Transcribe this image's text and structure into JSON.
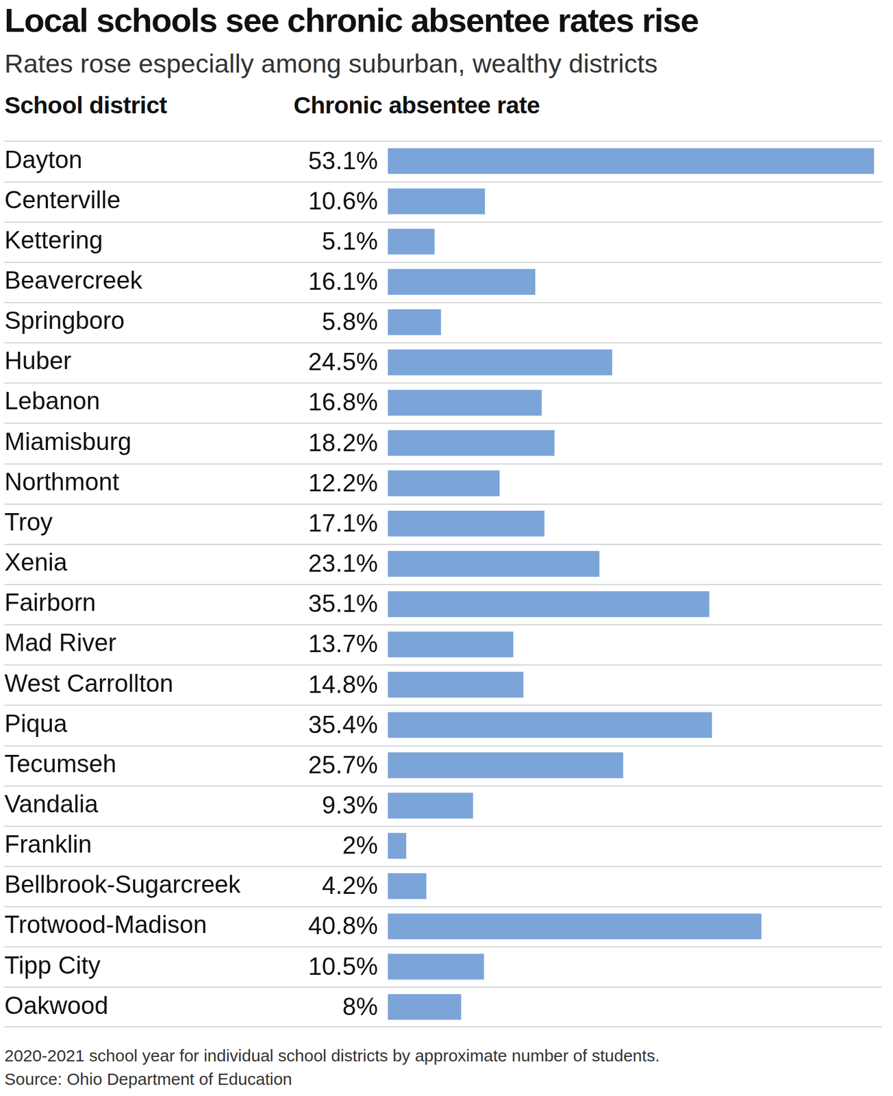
{
  "chart_data": {
    "type": "bar",
    "orientation": "horizontal",
    "title": "Local schools see chronic absentee rates rise",
    "subtitle": "Rates rose especially among suburban, wealthy districts",
    "y_label": "School district",
    "x_label": "Chronic absentee rate",
    "categories": [
      "Dayton",
      "Centerville",
      "Kettering",
      "Beavercreek",
      "Springboro",
      "Huber",
      "Lebanon",
      "Miamisburg",
      "Northmont",
      "Troy",
      "Xenia",
      "Fairborn",
      "Mad River",
      "West Carrollton",
      "Piqua",
      "Tecumseh",
      "Vandalia",
      "Franklin",
      "Bellbrook-Sugarcreek",
      "Trotwood-Madison",
      "Tipp City",
      "Oakwood"
    ],
    "values": [
      53.1,
      10.6,
      5.1,
      16.1,
      5.8,
      24.5,
      16.8,
      18.2,
      12.2,
      17.1,
      23.1,
      35.1,
      13.7,
      14.8,
      35.4,
      25.7,
      9.3,
      2,
      4.2,
      40.8,
      10.5,
      8
    ],
    "value_labels": [
      "53.1%",
      "10.6%",
      "5.1%",
      "16.1%",
      "5.8%",
      "24.5%",
      "16.8%",
      "18.2%",
      "12.2%",
      "17.1%",
      "23.1%",
      "35.1%",
      "13.7%",
      "14.8%",
      "35.4%",
      "25.7%",
      "9.3%",
      "2%",
      "4.2%",
      "40.8%",
      "10.5%",
      "8%"
    ],
    "color": "#7ba4d8",
    "xlim": [
      0,
      53.1
    ],
    "tick_labels": "y",
    "data_labels": true,
    "caption": "2020-2021 school year for individual school districts by approximate number of students.",
    "source": "Source: Ohio Department of Education"
  }
}
